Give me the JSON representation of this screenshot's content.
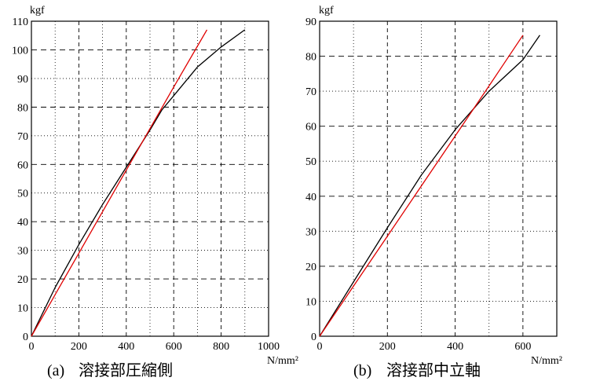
{
  "chart_data": [
    {
      "type": "line",
      "panel_label": "(a)",
      "title": "溶接部圧縮側",
      "xlabel": "N/mm²",
      "ylabel": "kgf",
      "xlim": [
        0,
        1000
      ],
      "ylim": [
        0,
        110
      ],
      "x_ticks": [
        0,
        200,
        400,
        600,
        800,
        1000
      ],
      "y_ticks": [
        0,
        10,
        20,
        30,
        40,
        50,
        60,
        70,
        80,
        90,
        100,
        110
      ],
      "grid": true,
      "series": [
        {
          "color": "#000000",
          "x": [
            0,
            100,
            200,
            300,
            400,
            500,
            550,
            600,
            700,
            800,
            900
          ],
          "y": [
            0,
            17,
            32,
            46,
            59,
            72,
            79,
            84,
            94,
            101,
            107
          ]
        },
        {
          "color": "#e00000",
          "x": [
            0,
            100,
            200,
            300,
            400,
            500,
            600,
            740
          ],
          "y": [
            0,
            14.5,
            29,
            43.5,
            58,
            72.5,
            87,
            107
          ]
        }
      ]
    },
    {
      "type": "line",
      "panel_label": "(b)",
      "title": "溶接部中立軸",
      "xlabel": "N/mm²",
      "ylabel": "kgf",
      "xlim": [
        0,
        700
      ],
      "ylim": [
        0,
        90
      ],
      "x_ticks": [
        0,
        200,
        400,
        600
      ],
      "y_ticks": [
        0,
        10,
        20,
        30,
        40,
        50,
        60,
        70,
        80,
        90
      ],
      "grid": true,
      "series": [
        {
          "color": "#000000",
          "x": [
            0,
            100,
            200,
            300,
            400,
            500,
            600,
            650
          ],
          "y": [
            0,
            15.5,
            31,
            46,
            59,
            70,
            79,
            86
          ]
        },
        {
          "color": "#e00000",
          "x": [
            0,
            100,
            200,
            300,
            400,
            500,
            600
          ],
          "y": [
            0,
            14.3,
            28.6,
            42.9,
            57.2,
            71.5,
            86
          ]
        }
      ]
    }
  ]
}
